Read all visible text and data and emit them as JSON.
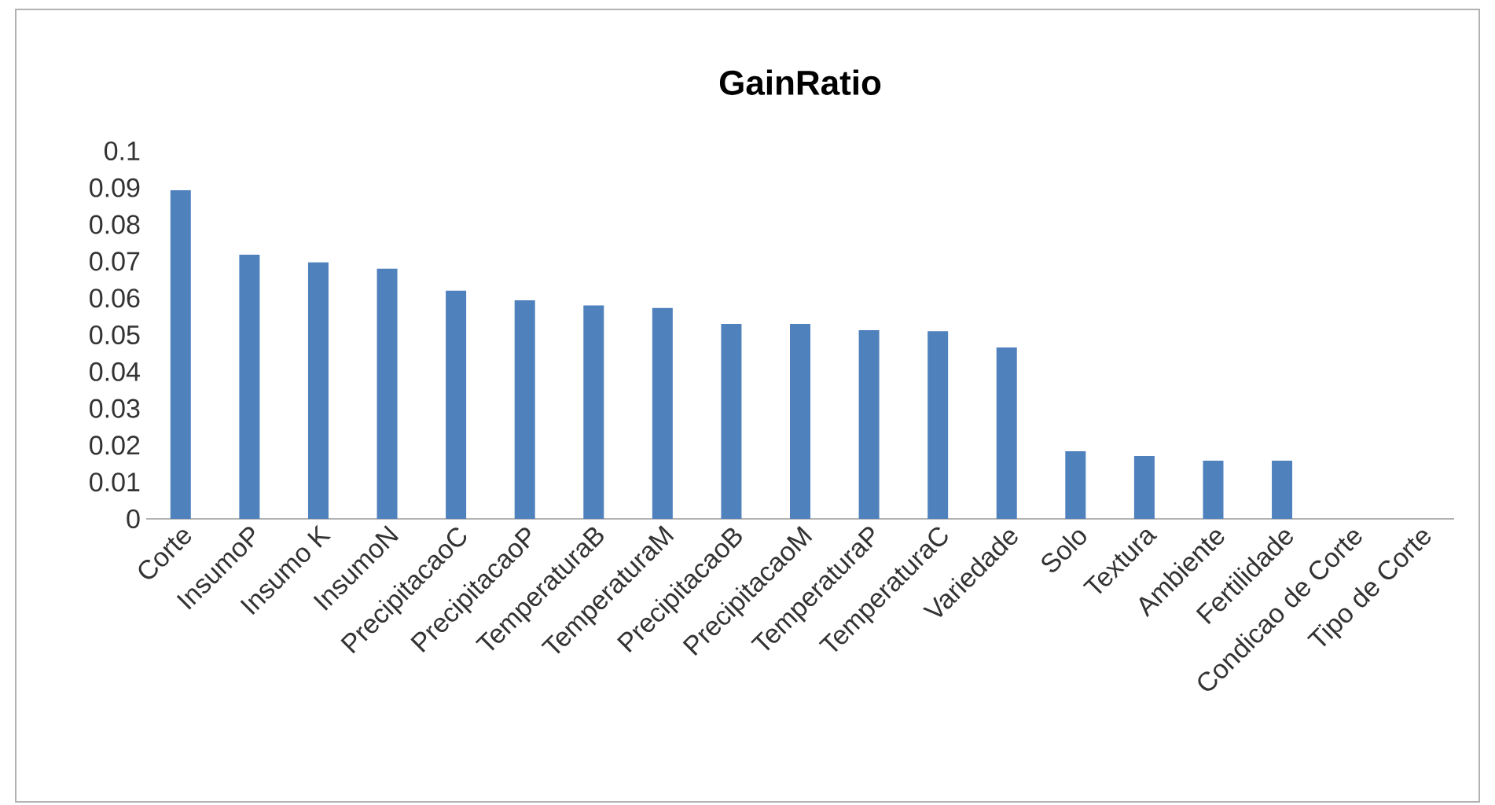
{
  "chart_data": {
    "type": "bar",
    "title": "GainRatio",
    "categories": [
      "Corte",
      "InsumoP",
      "Insumo K",
      "InsumoN",
      "PrecipitacaoC",
      "PrecipitacaoP",
      "TemperaturaB",
      "TemperaturaM",
      "PrecipitacaoB",
      "PrecipitacaoM",
      "TemperaturaP",
      "TemperaturaC",
      "Variedade",
      "Solo",
      "Textura",
      "Ambiente",
      "Fertilidade",
      "Condicao de Corte",
      "Tipo de Corte"
    ],
    "values": [
      0.0893,
      0.0718,
      0.0697,
      0.068,
      0.062,
      0.0594,
      0.058,
      0.0573,
      0.053,
      0.053,
      0.0513,
      0.051,
      0.0466,
      0.0184,
      0.0171,
      0.0158,
      0.0158,
      0,
      0
    ],
    "color": "#4f81bd",
    "ylim": [
      0,
      0.1
    ],
    "yticks": [
      0,
      0.01,
      0.02,
      0.03,
      0.04,
      0.05,
      0.06,
      0.07,
      0.08,
      0.09,
      0.1
    ]
  }
}
